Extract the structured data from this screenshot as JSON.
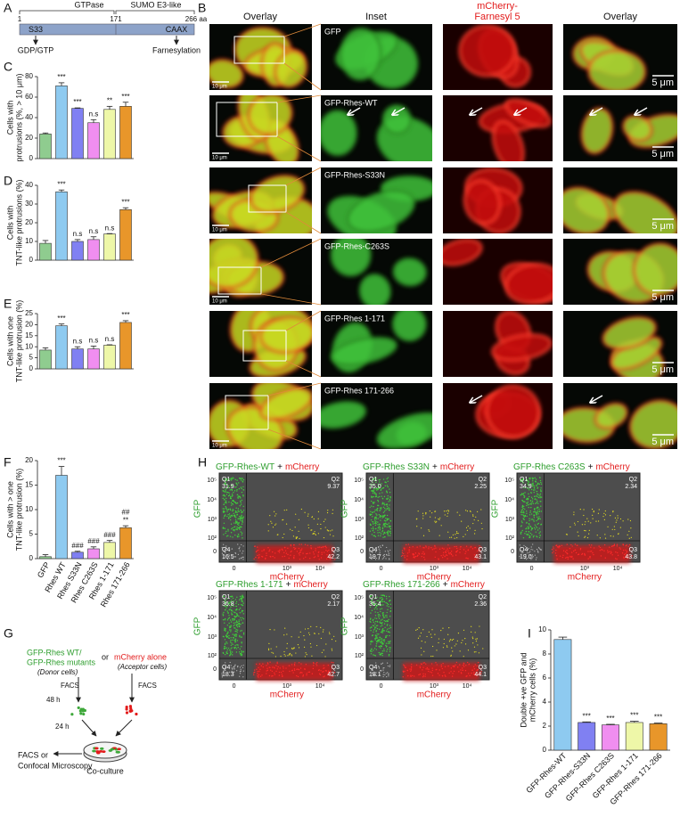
{
  "panel_labels": [
    "A",
    "B",
    "C",
    "D",
    "E",
    "F",
    "G",
    "H",
    "I"
  ],
  "domain_map": {
    "gtpase": "GTPase",
    "sumo": "SUMO E3-like",
    "start": "1",
    "mid": "171",
    "end": "266 aa",
    "s33": "S33",
    "caax": "CAAX",
    "gdp": "GDP/GTP",
    "farnesylation": "Farnesylation"
  },
  "microscopy": {
    "columns": [
      "Overlay",
      "Inset",
      "mCherry-",
      "Farnesyl 5",
      "Overlay"
    ],
    "rows": [
      "GFP",
      "GFP-Rhes-WT",
      "GFP-Rhes-S33N",
      "GFP-Rhes-C263S",
      "GFP-Rhes 1-171",
      "GFP-Rhes 171-266"
    ],
    "scale_large": "10 μm",
    "scale_small": "5 μm"
  },
  "chart_data": [
    {
      "type": "bar",
      "ylabel": [
        "Cells with",
        "protrusions (%, > 10 μm)"
      ],
      "ylim": [
        0,
        80
      ],
      "yticks": [
        0,
        20,
        40,
        60,
        80
      ],
      "values": [
        24,
        71,
        49,
        35,
        48,
        51
      ],
      "error": [
        1,
        3,
        0.5,
        3,
        3,
        4
      ],
      "colors": [
        "#8fcc8f",
        "#8ecaf0",
        "#8080f2",
        "#f08ef0",
        "#eef7a8",
        "#e8962a"
      ],
      "annotations": [
        [],
        [
          "***"
        ],
        [
          "***"
        ],
        [
          "n.s"
        ],
        [
          "**"
        ],
        [
          "***"
        ]
      ]
    },
    {
      "type": "bar",
      "ylabel": [
        "Cells with",
        "TNT-like protrusions (%)"
      ],
      "ylim": [
        0,
        40
      ],
      "yticks": [
        0,
        10,
        20,
        30,
        40
      ],
      "values": [
        9,
        36.5,
        10,
        11,
        14,
        27
      ],
      "error": [
        1.5,
        1,
        1,
        1.5,
        0.2,
        1
      ],
      "colors": [
        "#8fcc8f",
        "#8ecaf0",
        "#8080f2",
        "#f08ef0",
        "#eef7a8",
        "#e8962a"
      ],
      "annotations": [
        [],
        [
          "***"
        ],
        [
          "n.s"
        ],
        [
          "n.s"
        ],
        [
          "n.s"
        ],
        [
          "***"
        ]
      ]
    },
    {
      "type": "bar",
      "ylabel": [
        "Cells with one",
        "TNT-like protrusion (%)"
      ],
      "ylim": [
        0,
        25
      ],
      "yticks": [
        0,
        5,
        10,
        15,
        20,
        25
      ],
      "values": [
        8.5,
        19.5,
        9,
        9,
        10.7,
        21
      ],
      "error": [
        1,
        0.8,
        1,
        1.3,
        0.2,
        0.8
      ],
      "colors": [
        "#8fcc8f",
        "#8ecaf0",
        "#8080f2",
        "#f08ef0",
        "#eef7a8",
        "#e8962a"
      ],
      "annotations": [
        [],
        [
          "***"
        ],
        [
          "n.s"
        ],
        [
          "n.s"
        ],
        [
          "n.s"
        ],
        [
          "***"
        ]
      ]
    },
    {
      "type": "bar",
      "ylabel": [
        "Cells with > one",
        "TNT-like protrusion (%)"
      ],
      "ylim": [
        0,
        20
      ],
      "yticks": [
        0,
        5,
        10,
        15,
        20
      ],
      "categories": [
        "GFP",
        "Rhes WT",
        "Rhes S33N",
        "Rhes C263S",
        "Rhes 1-171",
        "Rhes 171-266"
      ],
      "values": [
        0.4,
        17,
        1.3,
        2,
        3.3,
        6.3
      ],
      "error": [
        0.4,
        1.8,
        0.2,
        0.4,
        0.4,
        0.4
      ],
      "colors": [
        "#8fcc8f",
        "#8ecaf0",
        "#8080f2",
        "#f08ef0",
        "#eef7a8",
        "#e8962a"
      ],
      "annotations": [
        [],
        [
          "***"
        ],
        [
          "###"
        ],
        [
          "###"
        ],
        [
          "###"
        ],
        [
          "**",
          "##"
        ]
      ]
    },
    {
      "type": "bar",
      "ylabel": [
        "Double +ve GFP and",
        "mCherry cells (%)"
      ],
      "ylim": [
        0,
        10
      ],
      "yticks": [
        0,
        2,
        4,
        6,
        8,
        10
      ],
      "categories": [
        "GFP-Rhes-WT",
        "GFP-Rhes-S33N",
        "GFP-Rhes C263S",
        "GFP-Rhes 1-171",
        "GFP-Rhes 171-266"
      ],
      "values": [
        9.2,
        2.3,
        2.1,
        2.3,
        2.2
      ],
      "error": [
        0.2,
        0.05,
        0.05,
        0.1,
        0.05
      ],
      "colors": [
        "#8ecaf0",
        "#8080f2",
        "#f08ef0",
        "#eef7a8",
        "#e8962a"
      ],
      "annotations": [
        [],
        [
          "***"
        ],
        [
          "***"
        ],
        [
          "***"
        ],
        [
          "***"
        ]
      ]
    }
  ],
  "flow": {
    "plus": "+",
    "partner": "mCherry",
    "ylabel": "GFP",
    "xlabel": "mCherry",
    "yticks": [
      "10⁵",
      "10⁴",
      "10³",
      "10²",
      "0"
    ],
    "xticks": [
      "0",
      "10³",
      "10⁴"
    ],
    "quadrants": [
      "Q1",
      "Q2",
      "Q3",
      "Q4"
    ],
    "plots": [
      {
        "title": "GFP-Rhes-WT",
        "values": [
          "31.9",
          "9.37",
          "42.2",
          "16.5"
        ]
      },
      {
        "title": "GFP-Rhes S33N",
        "values": [
          "35.0",
          "2.25",
          "43.1",
          "19.7"
        ]
      },
      {
        "title": "GFP-Rhes C263S",
        "values": [
          "34.9",
          "2.34",
          "43.8",
          "19.0"
        ]
      },
      {
        "title": "GFP-Rhes 1-171",
        "values": [
          "36.8",
          "2.17",
          "42.7",
          "18.3"
        ]
      },
      {
        "title": "GFP-Rhes 171-266",
        "values": [
          "35.4",
          "2.36",
          "44.1",
          "18.1"
        ]
      }
    ]
  },
  "workflow": {
    "donor1": "GFP-Rhes WT/",
    "donor2": "GFP-Rhes mutants",
    "donor3": "(Donor cells)",
    "or": "or",
    "acceptor1": "mCherry alone",
    "acceptor2": "(Acceptor cells)",
    "facs": "FACS",
    "h48": "48 h",
    "h24": "24 h",
    "coculture": "Co-culture",
    "out1": "FACS or",
    "out2": "Confocal Microscopy"
  }
}
